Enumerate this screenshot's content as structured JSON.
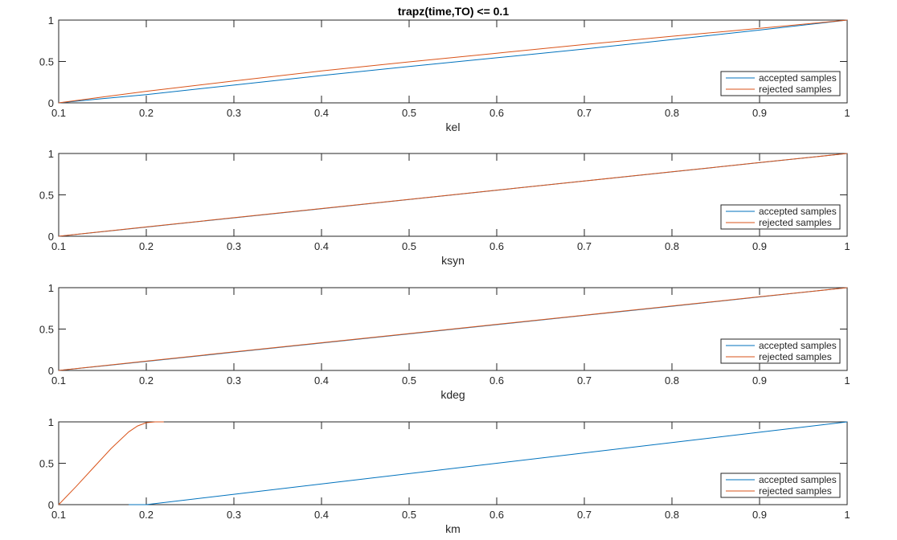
{
  "title": "trapz(time,TO) <= 0.1",
  "colors": {
    "accepted": "#0072BD",
    "rejected": "#D95319",
    "axis": "#262626"
  },
  "chart_data": [
    {
      "type": "line",
      "xlabel": "kel",
      "xlim": [
        0.1,
        1
      ],
      "ylim": [
        0,
        1
      ],
      "xticks": [
        "0.1",
        "0.2",
        "0.3",
        "0.4",
        "0.5",
        "0.6",
        "0.7",
        "0.8",
        "0.9",
        "1"
      ],
      "yticks": [
        "0",
        "0.5",
        "1"
      ],
      "legend": "bottom-right",
      "series": [
        {
          "name": "accepted samples",
          "x": [
            0.1,
            0.15,
            0.2,
            0.3,
            0.4,
            0.5,
            0.6,
            0.7,
            0.8,
            0.9,
            1.0
          ],
          "y": [
            0,
            0.05,
            0.1,
            0.215,
            0.33,
            0.44,
            0.545,
            0.65,
            0.765,
            0.88,
            1.0
          ]
        },
        {
          "name": "rejected samples",
          "x": [
            0.1,
            0.15,
            0.2,
            0.3,
            0.4,
            0.5,
            0.6,
            0.7,
            0.8,
            0.9,
            1.0
          ],
          "y": [
            0,
            0.07,
            0.14,
            0.265,
            0.385,
            0.495,
            0.6,
            0.705,
            0.805,
            0.9,
            1.0
          ]
        }
      ]
    },
    {
      "type": "line",
      "xlabel": "ksyn",
      "xlim": [
        0.1,
        1
      ],
      "ylim": [
        0,
        1
      ],
      "xticks": [
        "0.1",
        "0.2",
        "0.3",
        "0.4",
        "0.5",
        "0.6",
        "0.7",
        "0.8",
        "0.9",
        "1"
      ],
      "yticks": [
        "0",
        "0.5",
        "1"
      ],
      "legend": "bottom-right",
      "series": [
        {
          "name": "accepted samples",
          "x": [
            0.1,
            0.2,
            0.3,
            0.4,
            0.5,
            0.6,
            0.7,
            0.8,
            0.9,
            1.0
          ],
          "y": [
            0,
            0.111,
            0.222,
            0.333,
            0.444,
            0.556,
            0.667,
            0.778,
            0.889,
            1.0
          ]
        },
        {
          "name": "rejected samples",
          "x": [
            0.1,
            0.2,
            0.3,
            0.4,
            0.5,
            0.6,
            0.7,
            0.8,
            0.9,
            1.0
          ],
          "y": [
            0,
            0.113,
            0.224,
            0.335,
            0.446,
            0.557,
            0.668,
            0.779,
            0.89,
            1.0
          ]
        }
      ]
    },
    {
      "type": "line",
      "xlabel": "kdeg",
      "xlim": [
        0.1,
        1
      ],
      "ylim": [
        0,
        1
      ],
      "xticks": [
        "0.1",
        "0.2",
        "0.3",
        "0.4",
        "0.5",
        "0.6",
        "0.7",
        "0.8",
        "0.9",
        "1"
      ],
      "yticks": [
        "0",
        "0.5",
        "1"
      ],
      "legend": "bottom-right",
      "series": [
        {
          "name": "accepted samples",
          "x": [
            0.1,
            0.2,
            0.3,
            0.4,
            0.5,
            0.6,
            0.7,
            0.8,
            0.9,
            1.0
          ],
          "y": [
            0,
            0.109,
            0.22,
            0.331,
            0.442,
            0.553,
            0.665,
            0.776,
            0.888,
            1.0
          ]
        },
        {
          "name": "rejected samples",
          "x": [
            0.1,
            0.2,
            0.3,
            0.4,
            0.5,
            0.6,
            0.7,
            0.8,
            0.9,
            1.0
          ],
          "y": [
            0,
            0.113,
            0.224,
            0.335,
            0.446,
            0.557,
            0.668,
            0.779,
            0.89,
            1.0
          ]
        }
      ]
    },
    {
      "type": "line",
      "xlabel": "km",
      "xlim": [
        0.1,
        1
      ],
      "ylim": [
        0,
        1
      ],
      "xticks": [
        "0.1",
        "0.2",
        "0.3",
        "0.4",
        "0.5",
        "0.6",
        "0.7",
        "0.8",
        "0.9",
        "1"
      ],
      "yticks": [
        "0",
        "0.5",
        "1"
      ],
      "legend": "bottom-right",
      "series": [
        {
          "name": "accepted samples",
          "x": [
            0.18,
            0.2,
            0.3,
            0.4,
            0.5,
            0.6,
            0.7,
            0.8,
            0.9,
            1.0
          ],
          "y": [
            0,
            0.0,
            0.125,
            0.25,
            0.375,
            0.5,
            0.625,
            0.75,
            0.875,
            1.0
          ]
        },
        {
          "name": "rejected samples",
          "x": [
            0.1,
            0.12,
            0.14,
            0.16,
            0.18,
            0.19,
            0.2,
            0.21,
            0.22
          ],
          "y": [
            0,
            0.22,
            0.45,
            0.68,
            0.88,
            0.95,
            0.99,
            1.0,
            1.0
          ]
        }
      ]
    }
  ]
}
